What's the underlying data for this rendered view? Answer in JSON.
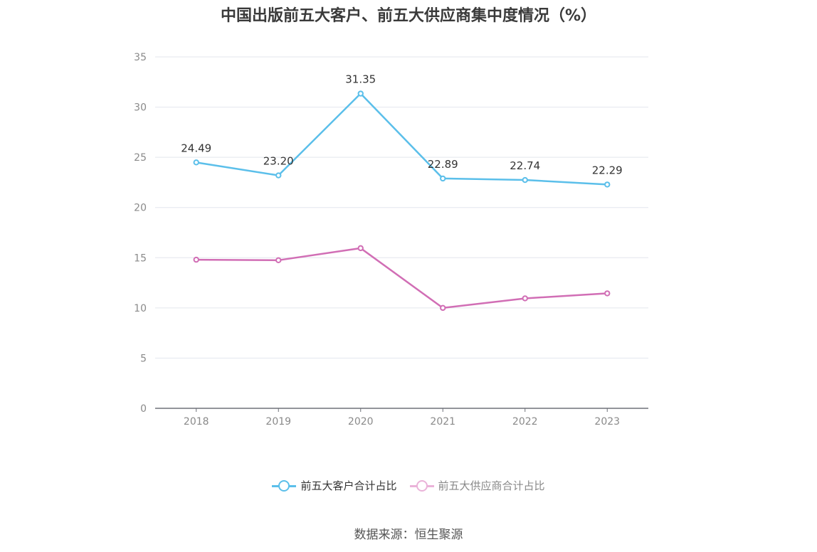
{
  "title": "中国出版前五大客户、前五大供应商集中度情况（%）",
  "source": "数据来源：恒生聚源",
  "chart_data": {
    "type": "line",
    "categories": [
      "2018",
      "2019",
      "2020",
      "2021",
      "2022",
      "2023"
    ],
    "series": [
      {
        "name": "前五大客户合计占比",
        "values": [
          24.49,
          23.2,
          31.35,
          22.89,
          22.74,
          22.29
        ],
        "labels": [
          "24.49",
          "23.20",
          "31.35",
          "22.89",
          "22.74",
          "22.29"
        ],
        "color": "#5bbfea",
        "legend_color": "#5bbfea"
      },
      {
        "name": "前五大供应商合计占比",
        "values": [
          14.8,
          14.75,
          15.95,
          10.0,
          10.95,
          11.45
        ],
        "color": "#d16eb5",
        "legend_color": "#eab3d9"
      }
    ],
    "ylim": [
      0,
      35
    ],
    "yticks": [
      0,
      5,
      10,
      15,
      20,
      25,
      30,
      35
    ],
    "grid": true,
    "legend": "bottom-center"
  }
}
